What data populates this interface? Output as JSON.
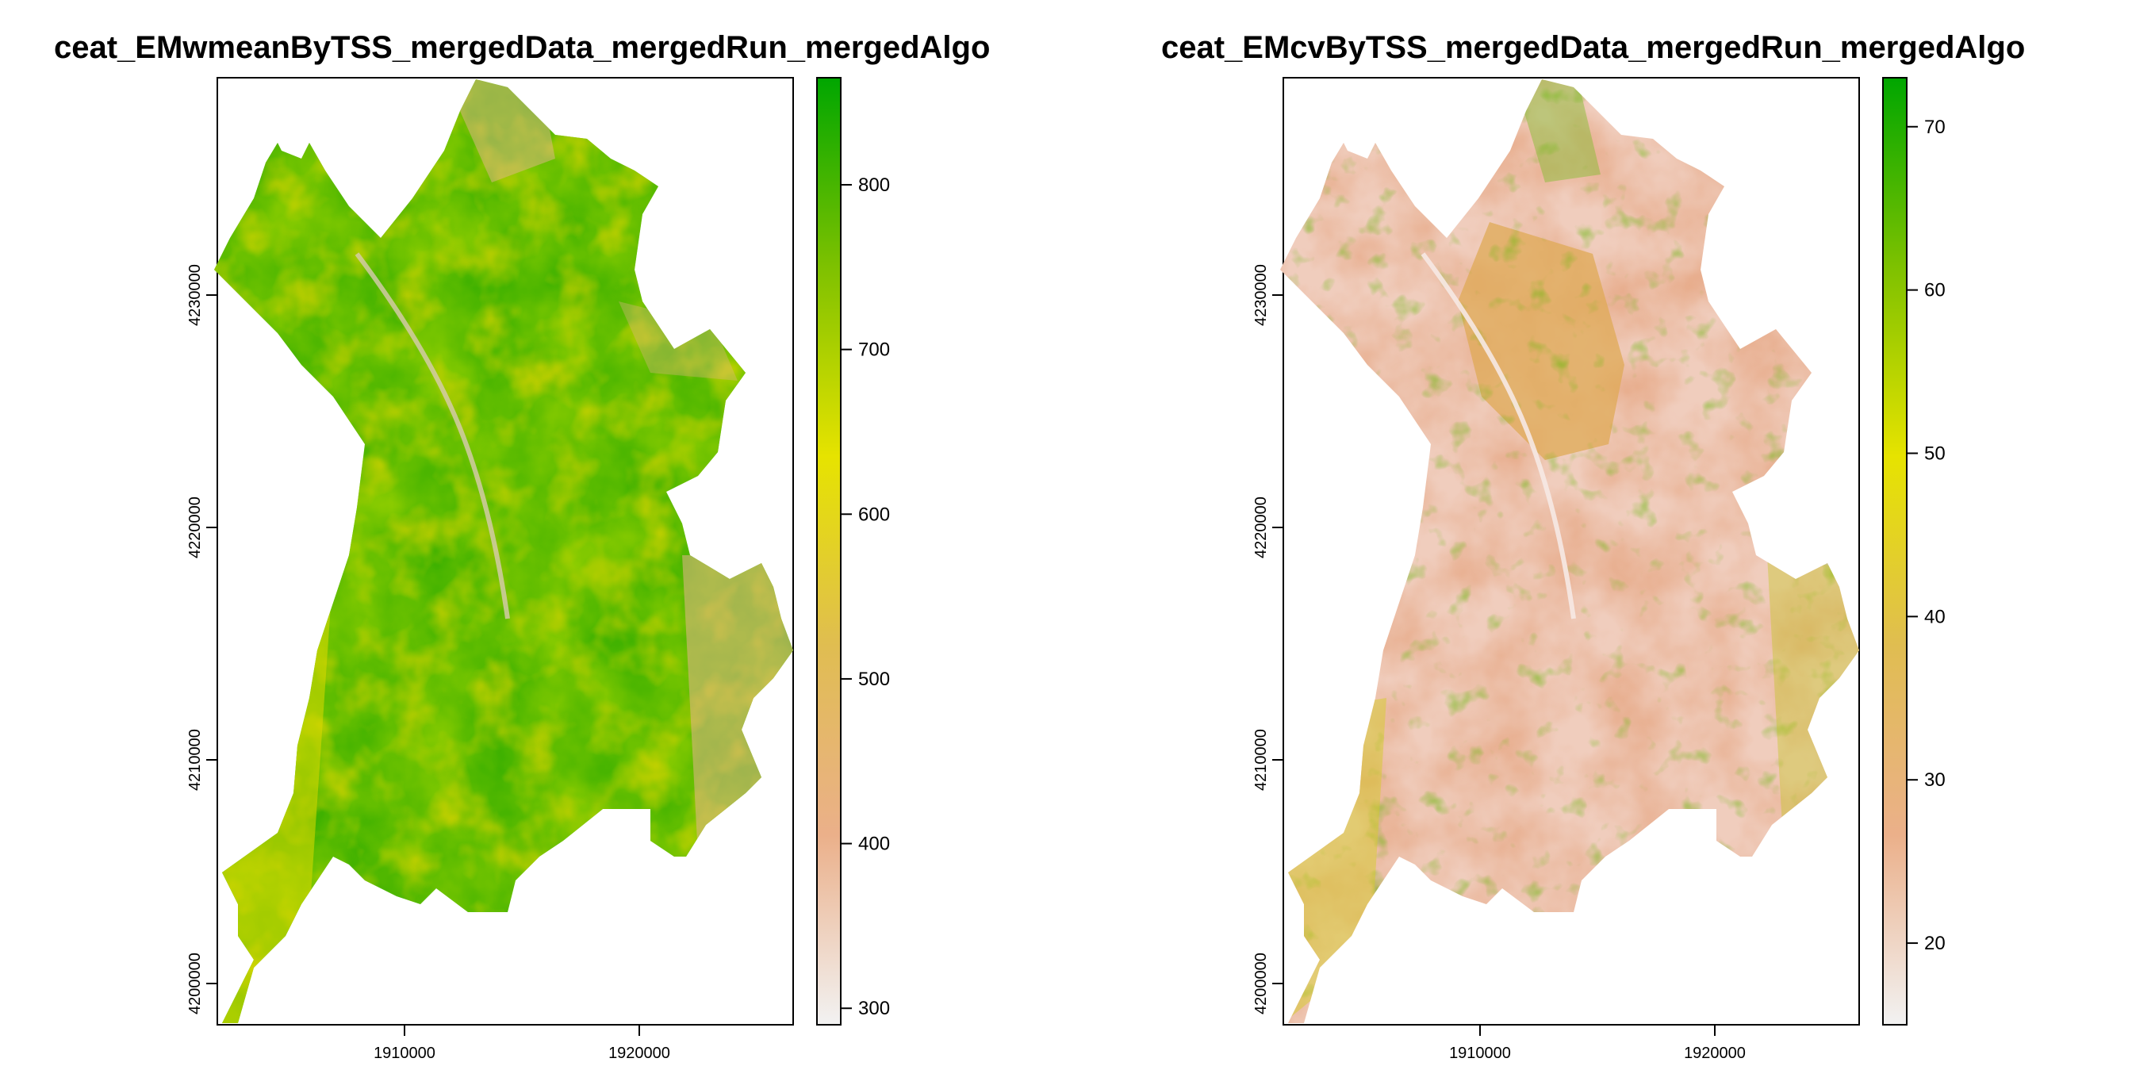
{
  "chart_data": [
    {
      "type": "heatmap",
      "title": "ceat_EMwmeanByTSS_mergedData_mergedRun_mergedAlgo",
      "xlabel": "",
      "ylabel": "",
      "x_ticks": [
        "1910000",
        "1920000"
      ],
      "y_ticks": [
        "4200000",
        "4210000",
        "4220000",
        "4230000"
      ],
      "legend": {
        "placement": "right",
        "range": [
          290,
          865
        ],
        "ticks": [
          300,
          400,
          500,
          600,
          700,
          800
        ],
        "colors": [
          "#f2f2f2",
          "#ebb08a",
          "#e0bd51",
          "#e6e300",
          "#7ec100",
          "#00a600"
        ]
      },
      "palette": {
        "low": "#ebb08a",
        "mid": "#e6e300",
        "high": "#00a600"
      }
    },
    {
      "type": "heatmap",
      "title": "ceat_EMcvByTSS_mergedData_mergedRun_mergedAlgo",
      "xlabel": "",
      "ylabel": "",
      "x_ticks": [
        "1910000",
        "1920000"
      ],
      "y_ticks": [
        "4200000",
        "4210000",
        "4220000",
        "4230000"
      ],
      "legend": {
        "placement": "right",
        "range": [
          15,
          73
        ],
        "ticks": [
          20,
          30,
          40,
          50,
          60,
          70
        ],
        "colors": [
          "#f2f2f2",
          "#ebb08a",
          "#e0bd51",
          "#e6e300",
          "#7ec100",
          "#00a600"
        ]
      },
      "palette": {
        "low": "#f1d9d0",
        "mid": "#e8b080",
        "high": "#00a600"
      }
    }
  ]
}
